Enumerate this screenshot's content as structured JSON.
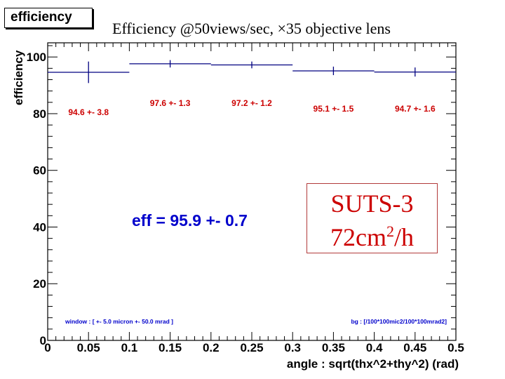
{
  "histogram_title": "efficiency",
  "slide_heading": "Efficiency @50views/sec, ×35 objective lens",
  "fit_result": "eff = 95.9 +- 0.7",
  "window_note": "window : [ +- 5.0 micron +- 50.0 mrad ]",
  "bg_note": "bg : [/100*100mic2/100*100mrad2]",
  "suts_box": {
    "line1": "SUTS-3",
    "line2_prefix": "72cm",
    "line2_sup": "2",
    "line2_suffix": "/h"
  },
  "colors": {
    "series": "#000080",
    "data_labels": "#cc0000",
    "annotation_blue": "#0000cc",
    "frame": "#000000"
  },
  "chart_data": {
    "type": "bar",
    "xlabel": "angle : sqrt(thx^2+thy^2) (rad)",
    "ylabel": "efficiency",
    "xlim": [
      0,
      0.5
    ],
    "ylim": [
      0,
      105
    ],
    "xticks": [
      "0",
      "0.05",
      "0.1",
      "0.15",
      "0.2",
      "0.25",
      "0.3",
      "0.35",
      "0.4",
      "0.45",
      "0.5"
    ],
    "yticks": [
      "0",
      "20",
      "40",
      "60",
      "80",
      "100"
    ],
    "bins": [
      {
        "x_low": 0.0,
        "x_high": 0.1,
        "value": 94.6,
        "error": 3.8,
        "label": "94.6 +- 3.8"
      },
      {
        "x_low": 0.1,
        "x_high": 0.2,
        "value": 97.6,
        "error": 1.3,
        "label": "97.6 +- 1.3"
      },
      {
        "x_low": 0.2,
        "x_high": 0.3,
        "value": 97.2,
        "error": 1.2,
        "label": "97.2 +- 1.2"
      },
      {
        "x_low": 0.3,
        "x_high": 0.4,
        "value": 95.1,
        "error": 1.5,
        "label": "95.1 +- 1.5"
      },
      {
        "x_low": 0.4,
        "x_high": 0.5,
        "value": 94.7,
        "error": 1.6,
        "label": "94.7 +- 1.6"
      }
    ]
  }
}
